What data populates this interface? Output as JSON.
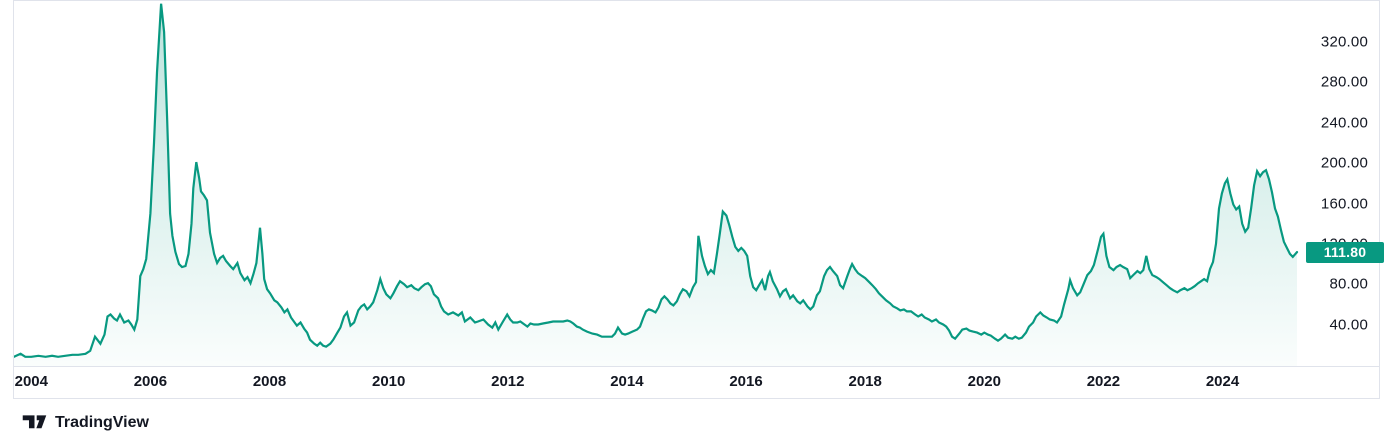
{
  "attribution": {
    "label": "TradingView",
    "logo_icon": "tradingview-logo-icon"
  },
  "colors": {
    "line": "#089981",
    "fill_top": "rgba(8,153,129,0.27)",
    "fill_bottom": "rgba(8,153,129,0.02)",
    "badge_bg": "#089981",
    "badge_text": "#ffffff",
    "axis_text": "#131722",
    "border": "#e0e3eb"
  },
  "chart_data": {
    "type": "area",
    "title": "",
    "xlabel": "",
    "ylabel": "",
    "grid": false,
    "legend": false,
    "x_range": [
      2003.71,
      2025.25
    ],
    "ylim": [
      0,
      363
    ],
    "last_price_value": 111.8,
    "last_price_label": "111.80",
    "y_axis": {
      "values": [
        320,
        280,
        240,
        200,
        160,
        120,
        80,
        40
      ],
      "labels": [
        "320.00",
        "280.00",
        "240.00",
        "200.00",
        "160.00",
        "120.00",
        "80.00",
        "40.00"
      ]
    },
    "x_axis": {
      "values": [
        2004,
        2006,
        2008,
        2010,
        2012,
        2014,
        2016,
        2018,
        2020,
        2022,
        2024
      ],
      "labels": [
        "2004",
        "2006",
        "2008",
        "2010",
        "2012",
        "2014",
        "2016",
        "2018",
        "2020",
        "2022",
        "2024"
      ]
    },
    "series": [
      [
        2003.71,
        8
      ],
      [
        2003.82,
        11
      ],
      [
        2003.9,
        8
      ],
      [
        2004.0,
        8
      ],
      [
        2004.12,
        9
      ],
      [
        2004.24,
        8
      ],
      [
        2004.35,
        9
      ],
      [
        2004.45,
        8
      ],
      [
        2004.57,
        9
      ],
      [
        2004.69,
        10
      ],
      [
        2004.79,
        10
      ],
      [
        2004.91,
        11
      ],
      [
        2004.99,
        14
      ],
      [
        2005.07,
        28
      ],
      [
        2005.16,
        21
      ],
      [
        2005.23,
        30
      ],
      [
        2005.28,
        48
      ],
      [
        2005.33,
        50
      ],
      [
        2005.39,
        46
      ],
      [
        2005.44,
        44
      ],
      [
        2005.49,
        50
      ],
      [
        2005.56,
        42
      ],
      [
        2005.63,
        44
      ],
      [
        2005.68,
        40
      ],
      [
        2005.73,
        35
      ],
      [
        2005.78,
        45
      ],
      [
        2005.83,
        88
      ],
      [
        2005.88,
        95
      ],
      [
        2005.93,
        105
      ],
      [
        2006.0,
        150
      ],
      [
        2006.06,
        220
      ],
      [
        2006.11,
        290
      ],
      [
        2006.18,
        358
      ],
      [
        2006.23,
        330
      ],
      [
        2006.28,
        245
      ],
      [
        2006.33,
        150
      ],
      [
        2006.37,
        128
      ],
      [
        2006.42,
        112
      ],
      [
        2006.48,
        100
      ],
      [
        2006.53,
        97
      ],
      [
        2006.59,
        98
      ],
      [
        2006.64,
        110
      ],
      [
        2006.69,
        140
      ],
      [
        2006.72,
        175
      ],
      [
        2006.77,
        201
      ],
      [
        2006.82,
        185
      ],
      [
        2006.85,
        172
      ],
      [
        2006.9,
        168
      ],
      [
        2006.95,
        163
      ],
      [
        2007.0,
        131
      ],
      [
        2007.07,
        110
      ],
      [
        2007.12,
        101
      ],
      [
        2007.17,
        106
      ],
      [
        2007.22,
        108
      ],
      [
        2007.27,
        103
      ],
      [
        2007.34,
        98
      ],
      [
        2007.39,
        95
      ],
      [
        2007.46,
        101
      ],
      [
        2007.51,
        91
      ],
      [
        2007.58,
        84
      ],
      [
        2007.63,
        87
      ],
      [
        2007.68,
        81
      ],
      [
        2007.73,
        90
      ],
      [
        2007.78,
        101
      ],
      [
        2007.84,
        136
      ],
      [
        2007.88,
        110
      ],
      [
        2007.91,
        85
      ],
      [
        2007.96,
        75
      ],
      [
        2008.01,
        71
      ],
      [
        2008.08,
        64
      ],
      [
        2008.13,
        62
      ],
      [
        2008.2,
        57
      ],
      [
        2008.25,
        52
      ],
      [
        2008.3,
        55
      ],
      [
        2008.36,
        47
      ],
      [
        2008.41,
        43
      ],
      [
        2008.46,
        39
      ],
      [
        2008.52,
        42
      ],
      [
        2008.58,
        36
      ],
      [
        2008.63,
        32
      ],
      [
        2008.68,
        25
      ],
      [
        2008.75,
        21
      ],
      [
        2008.8,
        19
      ],
      [
        2008.85,
        22
      ],
      [
        2008.9,
        19
      ],
      [
        2008.95,
        18
      ],
      [
        2009.02,
        21
      ],
      [
        2009.07,
        25
      ],
      [
        2009.14,
        32
      ],
      [
        2009.19,
        37
      ],
      [
        2009.25,
        48
      ],
      [
        2009.3,
        52
      ],
      [
        2009.36,
        39
      ],
      [
        2009.42,
        42
      ],
      [
        2009.49,
        54
      ],
      [
        2009.54,
        58
      ],
      [
        2009.59,
        60
      ],
      [
        2009.64,
        55
      ],
      [
        2009.69,
        58
      ],
      [
        2009.74,
        62
      ],
      [
        2009.81,
        74
      ],
      [
        2009.86,
        85
      ],
      [
        2009.91,
        76
      ],
      [
        2009.96,
        70
      ],
      [
        2010.03,
        66
      ],
      [
        2010.08,
        71
      ],
      [
        2010.14,
        78
      ],
      [
        2010.19,
        83
      ],
      [
        2010.26,
        80
      ],
      [
        2010.31,
        77
      ],
      [
        2010.38,
        79
      ],
      [
        2010.43,
        76
      ],
      [
        2010.5,
        74
      ],
      [
        2010.55,
        77
      ],
      [
        2010.61,
        80
      ],
      [
        2010.66,
        81
      ],
      [
        2010.71,
        78
      ],
      [
        2010.76,
        70
      ],
      [
        2010.83,
        66
      ],
      [
        2010.88,
        58
      ],
      [
        2010.93,
        53
      ],
      [
        2011.0,
        50
      ],
      [
        2011.08,
        52
      ],
      [
        2011.17,
        49
      ],
      [
        2011.23,
        52
      ],
      [
        2011.28,
        43
      ],
      [
        2011.37,
        47
      ],
      [
        2011.45,
        42
      ],
      [
        2011.5,
        43
      ],
      [
        2011.59,
        45
      ],
      [
        2011.67,
        40
      ],
      [
        2011.74,
        37
      ],
      [
        2011.79,
        42
      ],
      [
        2011.84,
        35
      ],
      [
        2011.92,
        43
      ],
      [
        2011.99,
        50
      ],
      [
        2012.04,
        45
      ],
      [
        2012.09,
        42
      ],
      [
        2012.16,
        42
      ],
      [
        2012.21,
        43
      ],
      [
        2012.28,
        40
      ],
      [
        2012.33,
        38
      ],
      [
        2012.38,
        41
      ],
      [
        2012.44,
        40
      ],
      [
        2012.51,
        40
      ],
      [
        2012.59,
        41
      ],
      [
        2012.68,
        42
      ],
      [
        2012.76,
        43
      ],
      [
        2012.85,
        43
      ],
      [
        2012.93,
        43
      ],
      [
        2013.0,
        44
      ],
      [
        2013.05,
        43
      ],
      [
        2013.1,
        41
      ],
      [
        2013.16,
        38
      ],
      [
        2013.21,
        37
      ],
      [
        2013.26,
        35
      ],
      [
        2013.33,
        33
      ],
      [
        2013.42,
        31
      ],
      [
        2013.5,
        30
      ],
      [
        2013.58,
        28
      ],
      [
        2013.67,
        28
      ],
      [
        2013.75,
        28
      ],
      [
        2013.8,
        31
      ],
      [
        2013.85,
        37
      ],
      [
        2013.92,
        31
      ],
      [
        2013.97,
        30
      ],
      [
        2014.02,
        31
      ],
      [
        2014.09,
        33
      ],
      [
        2014.17,
        35
      ],
      [
        2014.22,
        38
      ],
      [
        2014.27,
        46
      ],
      [
        2014.32,
        53
      ],
      [
        2014.37,
        55
      ],
      [
        2014.42,
        54
      ],
      [
        2014.48,
        52
      ],
      [
        2014.53,
        57
      ],
      [
        2014.58,
        65
      ],
      [
        2014.63,
        68
      ],
      [
        2014.68,
        65
      ],
      [
        2014.73,
        61
      ],
      [
        2014.78,
        59
      ],
      [
        2014.84,
        63
      ],
      [
        2014.89,
        70
      ],
      [
        2014.94,
        75
      ],
      [
        2015.0,
        73
      ],
      [
        2015.05,
        68
      ],
      [
        2015.11,
        77
      ],
      [
        2015.16,
        82
      ],
      [
        2015.2,
        128
      ],
      [
        2015.23,
        118
      ],
      [
        2015.26,
        108
      ],
      [
        2015.31,
        98
      ],
      [
        2015.36,
        90
      ],
      [
        2015.41,
        94
      ],
      [
        2015.46,
        91
      ],
      [
        2015.51,
        110
      ],
      [
        2015.56,
        130
      ],
      [
        2015.61,
        152
      ],
      [
        2015.67,
        148
      ],
      [
        2015.72,
        138
      ],
      [
        2015.77,
        127
      ],
      [
        2015.82,
        117
      ],
      [
        2015.87,
        113
      ],
      [
        2015.92,
        116
      ],
      [
        2015.97,
        113
      ],
      [
        2016.02,
        108
      ],
      [
        2016.07,
        88
      ],
      [
        2016.12,
        77
      ],
      [
        2016.17,
        74
      ],
      [
        2016.22,
        79
      ],
      [
        2016.27,
        84
      ],
      [
        2016.32,
        74
      ],
      [
        2016.37,
        88
      ],
      [
        2016.4,
        92
      ],
      [
        2016.45,
        83
      ],
      [
        2016.52,
        75
      ],
      [
        2016.57,
        68
      ],
      [
        2016.62,
        73
      ],
      [
        2016.67,
        75
      ],
      [
        2016.74,
        66
      ],
      [
        2016.79,
        69
      ],
      [
        2016.86,
        63
      ],
      [
        2016.91,
        61
      ],
      [
        2016.96,
        64
      ],
      [
        2017.03,
        58
      ],
      [
        2017.08,
        55
      ],
      [
        2017.13,
        58
      ],
      [
        2017.19,
        69
      ],
      [
        2017.24,
        73
      ],
      [
        2017.31,
        88
      ],
      [
        2017.36,
        94
      ],
      [
        2017.41,
        97
      ],
      [
        2017.46,
        93
      ],
      [
        2017.53,
        88
      ],
      [
        2017.58,
        79
      ],
      [
        2017.63,
        76
      ],
      [
        2017.7,
        88
      ],
      [
        2017.75,
        96
      ],
      [
        2017.78,
        100
      ],
      [
        2017.83,
        95
      ],
      [
        2017.88,
        91
      ],
      [
        2017.95,
        88
      ],
      [
        2018.0,
        86
      ],
      [
        2018.07,
        82
      ],
      [
        2018.12,
        79
      ],
      [
        2018.18,
        75
      ],
      [
        2018.23,
        71
      ],
      [
        2018.3,
        67
      ],
      [
        2018.35,
        64
      ],
      [
        2018.42,
        61
      ],
      [
        2018.47,
        58
      ],
      [
        2018.54,
        56
      ],
      [
        2018.59,
        54
      ],
      [
        2018.65,
        55
      ],
      [
        2018.7,
        53
      ],
      [
        2018.77,
        53
      ],
      [
        2018.84,
        50
      ],
      [
        2018.89,
        48
      ],
      [
        2018.95,
        50
      ],
      [
        2019.0,
        47
      ],
      [
        2019.07,
        45
      ],
      [
        2019.12,
        43
      ],
      [
        2019.19,
        45
      ],
      [
        2019.24,
        42
      ],
      [
        2019.31,
        40
      ],
      [
        2019.36,
        38
      ],
      [
        2019.41,
        34
      ],
      [
        2019.46,
        28
      ],
      [
        2019.51,
        26
      ],
      [
        2019.58,
        31
      ],
      [
        2019.63,
        35
      ],
      [
        2019.7,
        36
      ],
      [
        2019.75,
        34
      ],
      [
        2019.81,
        33
      ],
      [
        2019.88,
        32
      ],
      [
        2019.95,
        30
      ],
      [
        2020.0,
        32
      ],
      [
        2020.06,
        30
      ],
      [
        2020.11,
        29
      ],
      [
        2020.18,
        26
      ],
      [
        2020.23,
        24
      ],
      [
        2020.28,
        26
      ],
      [
        2020.35,
        30
      ],
      [
        2020.4,
        27
      ],
      [
        2020.47,
        26
      ],
      [
        2020.52,
        28
      ],
      [
        2020.58,
        26
      ],
      [
        2020.63,
        27
      ],
      [
        2020.7,
        32
      ],
      [
        2020.75,
        38
      ],
      [
        2020.82,
        42
      ],
      [
        2020.87,
        48
      ],
      [
        2020.94,
        52
      ],
      [
        2020.99,
        49
      ],
      [
        2021.05,
        47
      ],
      [
        2021.1,
        45
      ],
      [
        2021.17,
        44
      ],
      [
        2021.22,
        42
      ],
      [
        2021.29,
        48
      ],
      [
        2021.34,
        60
      ],
      [
        2021.41,
        75
      ],
      [
        2021.44,
        84
      ],
      [
        2021.49,
        76
      ],
      [
        2021.56,
        69
      ],
      [
        2021.61,
        72
      ],
      [
        2021.68,
        82
      ],
      [
        2021.73,
        89
      ],
      [
        2021.79,
        93
      ],
      [
        2021.84,
        99
      ],
      [
        2021.91,
        115
      ],
      [
        2021.96,
        127
      ],
      [
        2022.0,
        130
      ],
      [
        2022.05,
        108
      ],
      [
        2022.1,
        97
      ],
      [
        2022.17,
        94
      ],
      [
        2022.22,
        97
      ],
      [
        2022.28,
        99
      ],
      [
        2022.33,
        97
      ],
      [
        2022.4,
        95
      ],
      [
        2022.45,
        86
      ],
      [
        2022.5,
        89
      ],
      [
        2022.57,
        93
      ],
      [
        2022.62,
        91
      ],
      [
        2022.67,
        94
      ],
      [
        2022.72,
        108
      ],
      [
        2022.77,
        95
      ],
      [
        2022.82,
        89
      ],
      [
        2022.89,
        87
      ],
      [
        2022.94,
        85
      ],
      [
        2023.0,
        82
      ],
      [
        2023.06,
        79
      ],
      [
        2023.12,
        76
      ],
      [
        2023.17,
        74
      ],
      [
        2023.24,
        72
      ],
      [
        2023.29,
        74
      ],
      [
        2023.36,
        76
      ],
      [
        2023.41,
        74
      ],
      [
        2023.48,
        76
      ],
      [
        2023.53,
        78
      ],
      [
        2023.59,
        81
      ],
      [
        2023.64,
        83
      ],
      [
        2023.69,
        85
      ],
      [
        2023.74,
        83
      ],
      [
        2023.79,
        95
      ],
      [
        2023.84,
        102
      ],
      [
        2023.89,
        120
      ],
      [
        2023.94,
        155
      ],
      [
        2023.99,
        170
      ],
      [
        2024.04,
        180
      ],
      [
        2024.08,
        184
      ],
      [
        2024.13,
        170
      ],
      [
        2024.18,
        159
      ],
      [
        2024.23,
        154
      ],
      [
        2024.28,
        157
      ],
      [
        2024.33,
        140
      ],
      [
        2024.38,
        132
      ],
      [
        2024.43,
        136
      ],
      [
        2024.48,
        155
      ],
      [
        2024.53,
        178
      ],
      [
        2024.58,
        192
      ],
      [
        2024.63,
        187
      ],
      [
        2024.68,
        191
      ],
      [
        2024.73,
        193
      ],
      [
        2024.78,
        184
      ],
      [
        2024.83,
        171
      ],
      [
        2024.88,
        155
      ],
      [
        2024.93,
        147
      ],
      [
        2024.98,
        134
      ],
      [
        2025.03,
        122
      ],
      [
        2025.08,
        116
      ],
      [
        2025.13,
        110
      ],
      [
        2025.18,
        107
      ],
      [
        2025.25,
        111.8
      ]
    ]
  }
}
